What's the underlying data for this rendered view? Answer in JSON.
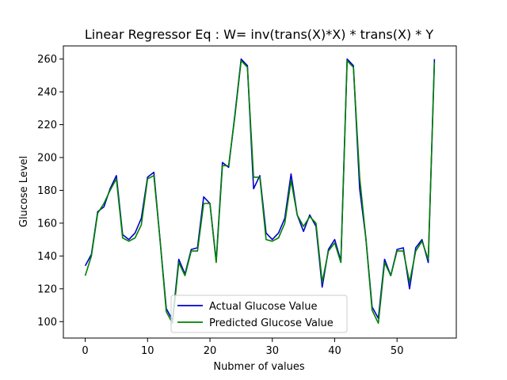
{
  "chart_data": {
    "type": "line",
    "title": "Linear Regressor Eq : W= inv(trans(X)*X) * trans(X) * Y",
    "xlabel": "Nubmer of values",
    "ylabel": "Glucose Level",
    "xlim": [
      -3.5,
      59.5
    ],
    "ylim": [
      90,
      268
    ],
    "xticks": [
      0,
      10,
      20,
      30,
      40,
      50
    ],
    "yticks": [
      100,
      120,
      140,
      160,
      180,
      200,
      220,
      240,
      260
    ],
    "grid": false,
    "legend_position": "lower-center",
    "series": [
      {
        "name": "Actual Glucose Value",
        "color": "#0000cc",
        "x": [
          0,
          1,
          2,
          3,
          4,
          5,
          6,
          7,
          8,
          9,
          10,
          11,
          12,
          13,
          14,
          15,
          16,
          17,
          18,
          19,
          20,
          21,
          22,
          23,
          24,
          25,
          26,
          27,
          28,
          29,
          30,
          31,
          32,
          33,
          34,
          35,
          36,
          37,
          38,
          39,
          40,
          41,
          42,
          43,
          44,
          45,
          46,
          47,
          48,
          49,
          50,
          51,
          52,
          53,
          54,
          55,
          56
        ],
        "values": [
          134,
          141,
          167,
          170,
          181,
          189,
          153,
          150,
          154,
          163,
          188,
          191,
          150,
          108,
          101,
          138,
          129,
          144,
          145,
          176,
          172,
          137,
          197,
          194,
          226,
          260,
          256,
          181,
          189,
          154,
          150,
          154,
          163,
          190,
          165,
          155,
          165,
          158,
          121,
          144,
          150,
          137,
          260,
          256,
          181,
          151,
          109,
          102,
          138,
          128,
          144,
          145,
          120,
          145,
          150,
          136,
          260
        ]
      },
      {
        "name": "Predicted Glucose Value",
        "color": "#008000",
        "x": [
          0,
          1,
          2,
          3,
          4,
          5,
          6,
          7,
          8,
          9,
          10,
          11,
          12,
          13,
          14,
          15,
          16,
          17,
          18,
          19,
          20,
          21,
          22,
          23,
          24,
          25,
          26,
          27,
          28,
          29,
          30,
          31,
          32,
          33,
          34,
          35,
          36,
          37,
          38,
          39,
          40,
          41,
          42,
          43,
          44,
          45,
          46,
          47,
          48,
          49,
          50,
          51,
          52,
          53,
          54,
          55,
          56
        ],
        "values": [
          128,
          140,
          166,
          172,
          180,
          187,
          151,
          149,
          151,
          159,
          187,
          189,
          150,
          106,
          99,
          136,
          128,
          143,
          143,
          172,
          172,
          136,
          195,
          195,
          225,
          259,
          255,
          188,
          188,
          150,
          149,
          151,
          160,
          186,
          165,
          158,
          164,
          160,
          124,
          143,
          148,
          136,
          259,
          255,
          188,
          151,
          107,
          99,
          136,
          128,
          143,
          143,
          124,
          143,
          149,
          138,
          258
        ]
      }
    ]
  }
}
